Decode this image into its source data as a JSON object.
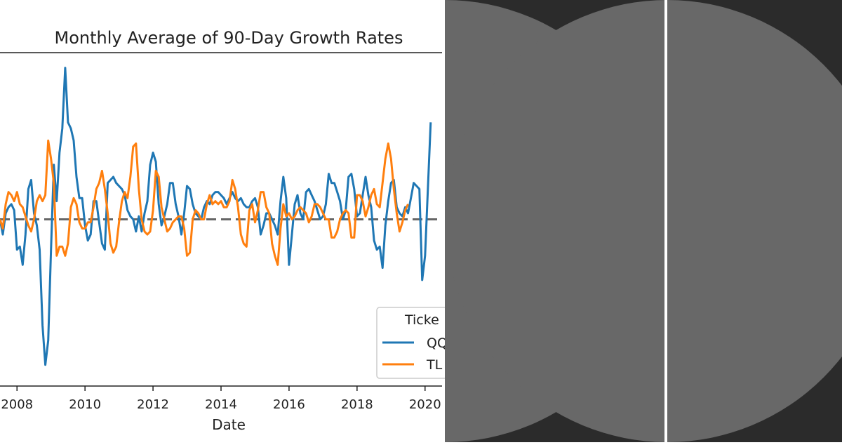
{
  "colors": {
    "qqq": "#1f77b4",
    "tlt": "#ff7f0e",
    "zero_line": "#666666",
    "dark_panel": "#2b2b2b",
    "circle": "#686868"
  },
  "chart_data": {
    "type": "line",
    "title": "Monthly Average of 90-Day Growth Rates",
    "xlabel": "Date",
    "ylabel": "",
    "x_tick_labels": [
      "2008",
      "2010",
      "2012",
      "2014",
      "2016",
      "2018",
      "2020"
    ],
    "x_range": [
      2007.5,
      2020.5
    ],
    "y_range": [
      -0.55,
      0.55
    ],
    "zero_line": 0,
    "legend_title": "Ticker",
    "legend_title_visible": "Ticke",
    "series": [
      {
        "name": "QQQ",
        "label_visible": "QQ",
        "start": 2007.5,
        "step_months": 1,
        "values": [
          0.0,
          -0.05,
          0.02,
          0.04,
          0.05,
          0.03,
          -0.1,
          -0.09,
          -0.15,
          -0.05,
          0.1,
          0.13,
          0.02,
          -0.02,
          -0.1,
          -0.35,
          -0.48,
          -0.4,
          -0.1,
          0.18,
          0.06,
          0.22,
          0.3,
          0.5,
          0.32,
          0.3,
          0.26,
          0.14,
          0.07,
          0.07,
          -0.02,
          -0.07,
          -0.05,
          0.06,
          0.06,
          -0.01,
          -0.08,
          -0.1,
          0.12,
          0.13,
          0.14,
          0.12,
          0.11,
          0.1,
          0.08,
          0.03,
          0.01,
          0.0,
          -0.04,
          0.01,
          -0.04,
          0.02,
          0.06,
          0.18,
          0.22,
          0.19,
          0.05,
          -0.02,
          0.01,
          0.05,
          0.12,
          0.12,
          0.05,
          0.01,
          -0.05,
          0.02,
          0.11,
          0.1,
          0.05,
          0.02,
          0.01,
          0.0,
          0.04,
          0.06,
          0.05,
          0.08,
          0.09,
          0.09,
          0.08,
          0.07,
          0.05,
          0.07,
          0.09,
          0.07,
          0.06,
          0.07,
          0.05,
          0.04,
          0.04,
          0.06,
          0.07,
          0.04,
          -0.05,
          -0.02,
          0.02,
          0.02,
          0.0,
          -0.02,
          -0.05,
          0.06,
          0.14,
          0.07,
          -0.15,
          -0.05,
          0.05,
          0.08,
          0.02,
          0.0,
          0.09,
          0.1,
          0.08,
          0.06,
          0.03,
          0.0,
          0.01,
          0.05,
          0.15,
          0.12,
          0.12,
          0.09,
          0.06,
          0.0,
          0.03,
          0.14,
          0.15,
          0.1,
          0.01,
          0.02,
          0.08,
          0.14,
          0.08,
          0.04,
          -0.07,
          -0.1,
          -0.09,
          -0.16,
          -0.02,
          0.06,
          0.12,
          0.13,
          0.04,
          0.02,
          0.01,
          0.04,
          0.02,
          0.07,
          0.12,
          0.11,
          0.1,
          -0.2,
          -0.12,
          0.1,
          0.32
        ]
      },
      {
        "name": "TLT",
        "label_visible": "TL",
        "start": 2007.5,
        "step_months": 1,
        "values": [
          0.0,
          -0.03,
          0.05,
          0.09,
          0.08,
          0.06,
          0.09,
          0.05,
          0.04,
          0.01,
          -0.02,
          -0.04,
          0.0,
          0.06,
          0.08,
          0.06,
          0.08,
          0.26,
          0.2,
          0.12,
          -0.12,
          -0.09,
          -0.09,
          -0.12,
          -0.08,
          0.04,
          0.07,
          0.05,
          -0.01,
          -0.03,
          -0.03,
          -0.01,
          -0.01,
          0.04,
          0.1,
          0.12,
          0.16,
          0.1,
          0.02,
          -0.08,
          -0.11,
          -0.09,
          -0.01,
          0.06,
          0.09,
          0.07,
          0.14,
          0.24,
          0.25,
          0.1,
          0.0,
          -0.04,
          -0.05,
          -0.04,
          0.03,
          0.16,
          0.14,
          0.04,
          0.0,
          -0.04,
          -0.03,
          -0.01,
          0.0,
          0.01,
          0.01,
          -0.03,
          -0.12,
          -0.11,
          0.0,
          0.03,
          0.02,
          0.0,
          0.0,
          0.05,
          0.08,
          0.05,
          0.06,
          0.05,
          0.06,
          0.04,
          0.04,
          0.06,
          0.13,
          0.1,
          0.04,
          -0.05,
          -0.08,
          -0.09,
          0.03,
          0.05,
          -0.01,
          0.03,
          0.09,
          0.09,
          0.04,
          0.02,
          -0.08,
          -0.12,
          -0.15,
          -0.03,
          0.05,
          0.01,
          0.02,
          0.0,
          0.01,
          0.03,
          0.04,
          0.03,
          0.02,
          -0.01,
          0.01,
          0.05,
          0.05,
          0.04,
          0.02,
          0.0,
          0.0,
          -0.06,
          -0.06,
          -0.04,
          0.0,
          0.02,
          0.03,
          0.02,
          -0.06,
          -0.06,
          0.08,
          0.08,
          0.06,
          0.01,
          0.04,
          0.08,
          0.1,
          0.05,
          0.04,
          0.12,
          0.2,
          0.25,
          0.2,
          0.1,
          0.02,
          -0.04,
          -0.01,
          0.03,
          0.05
        ]
      }
    ]
  }
}
